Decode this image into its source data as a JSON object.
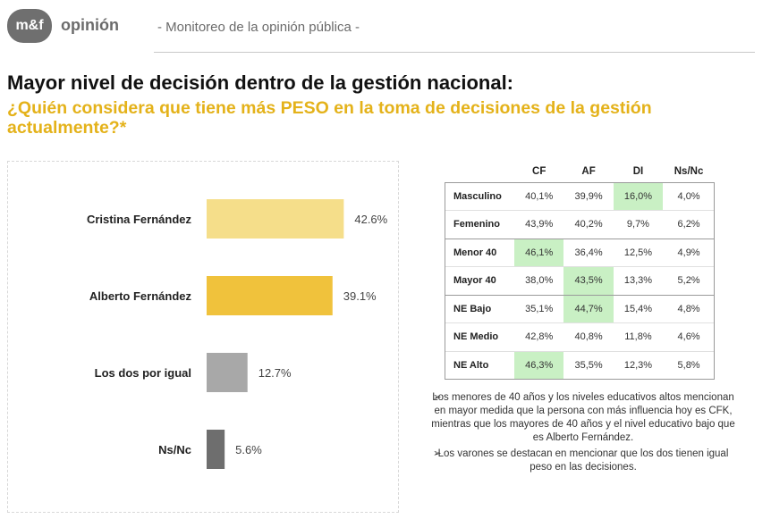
{
  "header": {
    "logo_text": "m&f",
    "brand": "opinión",
    "subtitle": "- Monitoreo de la opinión pública -"
  },
  "title": "Mayor nivel de decisión dentro de la gestión nacional:",
  "question": "¿Quién considera que tiene más PESO en la toma de decisiones de la gestión actualmente?*",
  "colors": {
    "accent_yellow": "#e4b21a",
    "highlight_green": "#c9f0c4"
  },
  "chart_data": {
    "type": "bar",
    "orientation": "horizontal",
    "categories": [
      "Cristina Fernández",
      "Alberto Fernández",
      "Los dos por igual",
      "Ns/Nc"
    ],
    "values": [
      42.6,
      39.1,
      12.7,
      5.6
    ],
    "value_labels": [
      "42.6%",
      "39.1%",
      "12.7%",
      "5.6%"
    ],
    "bar_colors": [
      "#f5de8a",
      "#f0c23c",
      "#a8a8a8",
      "#6e6e6e"
    ],
    "xlim": [
      0,
      50
    ],
    "grid": false,
    "legend": "none"
  },
  "table": {
    "columns": [
      "CF",
      "AF",
      "DI",
      "Ns/Nc"
    ],
    "rows": [
      {
        "label": "Masculino",
        "values": [
          "40,1%",
          "39,9%",
          "16,0%",
          "4,0%"
        ],
        "highlight": [
          2
        ],
        "group_start": true
      },
      {
        "label": "Femenino",
        "values": [
          "43,9%",
          "40,2%",
          "9,7%",
          "6,2%"
        ],
        "highlight": []
      },
      {
        "label": "Menor 40",
        "values": [
          "46,1%",
          "36,4%",
          "12,5%",
          "4,9%"
        ],
        "highlight": [
          0
        ],
        "group_start": true
      },
      {
        "label": "Mayor 40",
        "values": [
          "38,0%",
          "43,5%",
          "13,3%",
          "5,2%"
        ],
        "highlight": [
          1
        ]
      },
      {
        "label": "NE Bajo",
        "values": [
          "35,1%",
          "44,7%",
          "15,4%",
          "4,8%"
        ],
        "highlight": [
          1
        ],
        "group_start": true
      },
      {
        "label": "NE Medio",
        "values": [
          "42,8%",
          "40,8%",
          "11,8%",
          "4,6%"
        ],
        "highlight": []
      },
      {
        "label": "NE Alto",
        "values": [
          "46,3%",
          "35,5%",
          "12,3%",
          "5,8%"
        ],
        "highlight": [
          0
        ]
      }
    ]
  },
  "notes": [
    "Los menores de 40 años y los niveles educativos altos mencionan en mayor medida que la persona con más influencia hoy es CFK, mientras que los mayores de 40 años y el nivel educativo bajo que es Alberto Fernández.",
    "Los varones se destacan en mencionar que los dos tienen igual peso en las decisiones."
  ],
  "note_marker": "➢"
}
